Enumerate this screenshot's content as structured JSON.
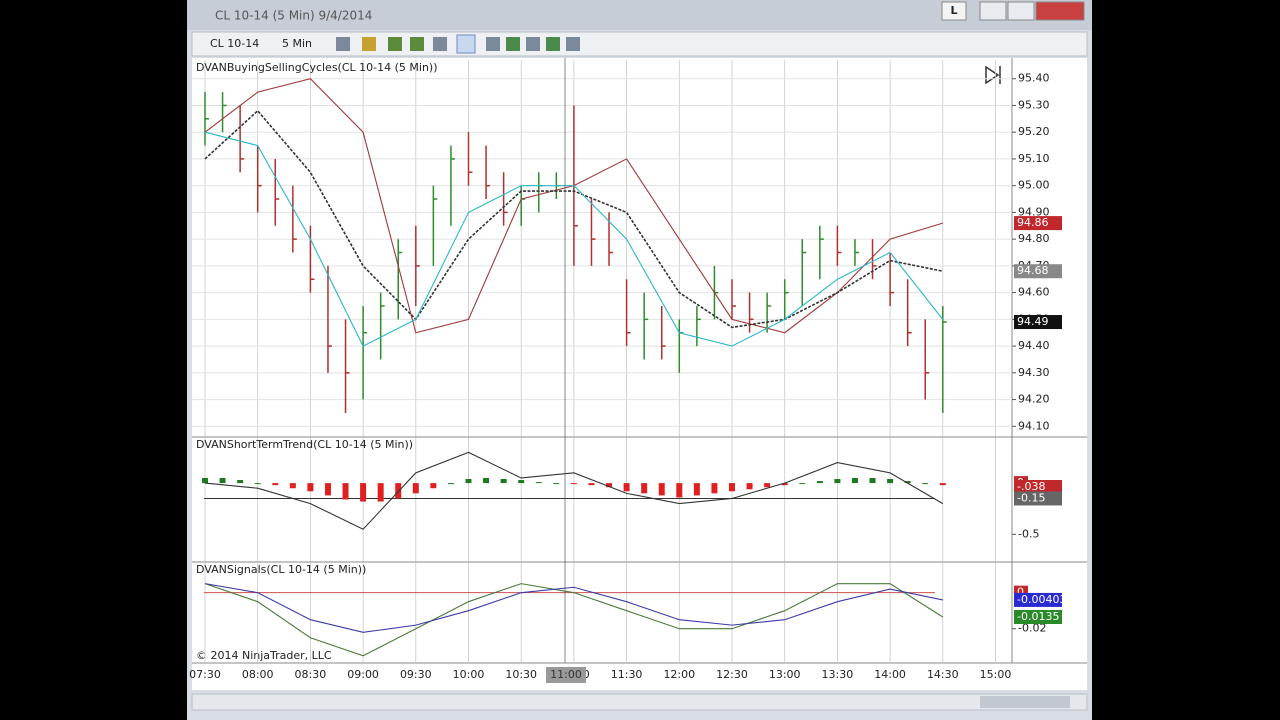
{
  "window": {
    "title": "CL 10-14 (5 Min) 9/4/2014",
    "button": "L"
  },
  "toolbar": {
    "instrument": "CL 10-14",
    "interval": "5 Min"
  },
  "copyright": "© 2014 NinjaTrader, LLC",
  "crosshair": {
    "label": "11:00"
  },
  "time_axis": {
    "ticks": [
      "07:30",
      "08:00",
      "08:30",
      "09:00",
      "09:30",
      "10:00",
      "10:30",
      "11:00",
      "11:30",
      "12:00",
      "12:30",
      "13:00",
      "13:30",
      "14:00",
      "14:30",
      "15:00"
    ]
  },
  "chart_data": [
    {
      "type": "ohlc",
      "title": "DVANBuyingSellingCycles(CL 10-14 (5 Min))",
      "ylim": [
        94.06,
        95.47
      ],
      "yticks": [
        {
          "value": 95.4,
          "label": "95.40"
        },
        {
          "value": 95.3,
          "label": "95.30"
        },
        {
          "value": 95.2,
          "label": "95.20"
        },
        {
          "value": 95.1,
          "label": "95.10"
        },
        {
          "value": 95.0,
          "label": "95.00"
        },
        {
          "value": 94.9,
          "label": "94.90"
        },
        {
          "value": 94.8,
          "label": "94.80"
        },
        {
          "value": 94.7,
          "label": "94.70"
        },
        {
          "value": 94.6,
          "label": "94.60"
        },
        {
          "value": 94.5,
          "label": "94.50"
        },
        {
          "value": 94.4,
          "label": "94.40"
        },
        {
          "value": 94.3,
          "label": "94.30"
        },
        {
          "value": 94.2,
          "label": "94.20"
        },
        {
          "value": 94.1,
          "label": "94.10"
        }
      ],
      "grid": true,
      "up_color": "#2e8b2e",
      "down_color": "#b03030",
      "low": [
        95.15,
        95.2,
        95.05,
        94.9,
        94.85,
        94.75,
        94.6,
        94.3,
        94.15,
        94.2,
        94.35,
        94.5,
        94.55,
        94.7,
        94.85,
        95.0,
        94.95,
        94.85,
        94.85,
        94.9,
        94.95,
        94.7,
        94.7,
        94.7,
        94.4,
        94.35,
        94.35,
        94.3,
        94.4,
        94.5,
        94.5,
        94.45,
        94.45,
        94.5,
        94.55,
        94.65,
        94.7,
        94.7,
        94.65,
        94.55,
        94.4,
        94.2,
        94.15
      ],
      "high": [
        95.35,
        95.35,
        95.3,
        95.15,
        95.1,
        95.0,
        94.85,
        94.7,
        94.5,
        94.55,
        94.6,
        94.8,
        94.85,
        95.0,
        95.15,
        95.2,
        95.15,
        95.05,
        95.0,
        95.05,
        95.05,
        95.3,
        94.95,
        94.9,
        94.65,
        94.6,
        94.55,
        94.5,
        94.55,
        94.7,
        94.65,
        94.6,
        94.6,
        94.65,
        94.8,
        94.85,
        94.85,
        94.8,
        94.8,
        94.75,
        94.65,
        94.5,
        94.55
      ],
      "close": [
        95.25,
        95.3,
        95.1,
        95.0,
        94.95,
        94.8,
        94.65,
        94.4,
        94.3,
        94.45,
        94.55,
        94.75,
        94.7,
        94.95,
        95.1,
        95.05,
        95.0,
        94.9,
        94.95,
        95.0,
        95.0,
        94.85,
        94.8,
        94.75,
        94.45,
        94.5,
        94.4,
        94.45,
        94.5,
        94.6,
        94.55,
        94.5,
        94.55,
        94.6,
        94.75,
        94.8,
        94.75,
        94.75,
        94.7,
        94.6,
        94.45,
        94.3,
        94.49
      ],
      "series": [
        {
          "color": "#a03838",
          "values": [
            95.2,
            95.35,
            95.4,
            95.2,
            94.45,
            94.5,
            94.95,
            95.0,
            95.1,
            94.8,
            94.5,
            94.45,
            94.6,
            94.8,
            94.86
          ]
        },
        {
          "color": "#333333",
          "values": [
            95.1,
            95.28,
            95.05,
            94.7,
            94.5,
            94.8,
            94.98,
            94.98,
            94.9,
            94.6,
            94.47,
            94.5,
            94.6,
            94.72,
            94.68
          ]
        },
        {
          "color": "#2bb8c8",
          "values": [
            95.2,
            95.15,
            94.8,
            94.4,
            94.5,
            94.9,
            95.0,
            95.0,
            94.8,
            94.45,
            94.4,
            94.5,
            94.65,
            94.75,
            94.5
          ]
        }
      ],
      "markers": [
        {
          "value": 94.86,
          "color": "#c0282c"
        },
        {
          "value": 94.68,
          "color": "#888888"
        },
        {
          "value": 94.49,
          "color": "#111111"
        }
      ]
    },
    {
      "type": "histogram",
      "title": "DVANShortTermTrend(CL 10-14 (5 Min))",
      "ylim": [
        -0.77,
        0.45
      ],
      "yticks": [
        -0.5
      ],
      "grid": false,
      "up_color": "#1f7a1f",
      "down_color": "#e02020",
      "values": [
        0.05,
        0.05,
        0.03,
        0.0,
        -0.02,
        -0.05,
        -0.08,
        -0.12,
        -0.16,
        -0.18,
        -0.18,
        -0.15,
        -0.1,
        -0.05,
        0.0,
        0.04,
        0.05,
        0.04,
        0.03,
        0.01,
        0.0,
        -0.01,
        -0.02,
        -0.04,
        -0.08,
        -0.1,
        -0.12,
        -0.14,
        -0.12,
        -0.1,
        -0.08,
        -0.06,
        -0.04,
        -0.02,
        0.0,
        0.02,
        0.04,
        0.05,
        0.05,
        0.04,
        0.02,
        0.0,
        -0.02
      ],
      "series": [
        {
          "color": "#333333",
          "values": [
            0.0,
            -0.05,
            -0.2,
            -0.45,
            0.1,
            0.3,
            0.05,
            0.1,
            -0.1,
            -0.2,
            -0.15,
            0.0,
            0.2,
            0.1,
            -0.2
          ]
        }
      ],
      "reference": {
        "value": -0.15,
        "color": "#333333"
      },
      "markers": [
        {
          "value": 0,
          "color": "#c0282c"
        },
        {
          "value": -0.038,
          "label": "-.038",
          "color": "#c0282c"
        },
        {
          "value": -0.15,
          "color": "#666666"
        }
      ]
    },
    {
      "type": "line",
      "title": "DVANSignals(CL 10-14 (5 Min))",
      "ylim": [
        -0.039,
        0.017
      ],
      "yticks": [
        -0.02
      ],
      "grid": false,
      "series": [
        {
          "color": "#4a7a3a",
          "values": [
            0.005,
            -0.005,
            -0.025,
            -0.035,
            -0.02,
            -0.005,
            0.005,
            0.0,
            -0.01,
            -0.02,
            -0.02,
            -0.01,
            0.005,
            0.005,
            -0.0135
          ]
        },
        {
          "color": "#3a3aa8",
          "values": [
            0.005,
            0.0,
            -0.015,
            -0.022,
            -0.018,
            -0.01,
            0.0,
            0.003,
            -0.005,
            -0.015,
            -0.018,
            -0.015,
            -0.005,
            0.002,
            -0.00403
          ]
        }
      ],
      "reference": {
        "value": 0,
        "color": "#d05050"
      },
      "markers": [
        {
          "value": 0,
          "color": "#c0282c"
        },
        {
          "value": -0.00403,
          "color": "#2a2ad0"
        },
        {
          "value": -0.0135,
          "color": "#2a8a2a"
        }
      ]
    }
  ]
}
